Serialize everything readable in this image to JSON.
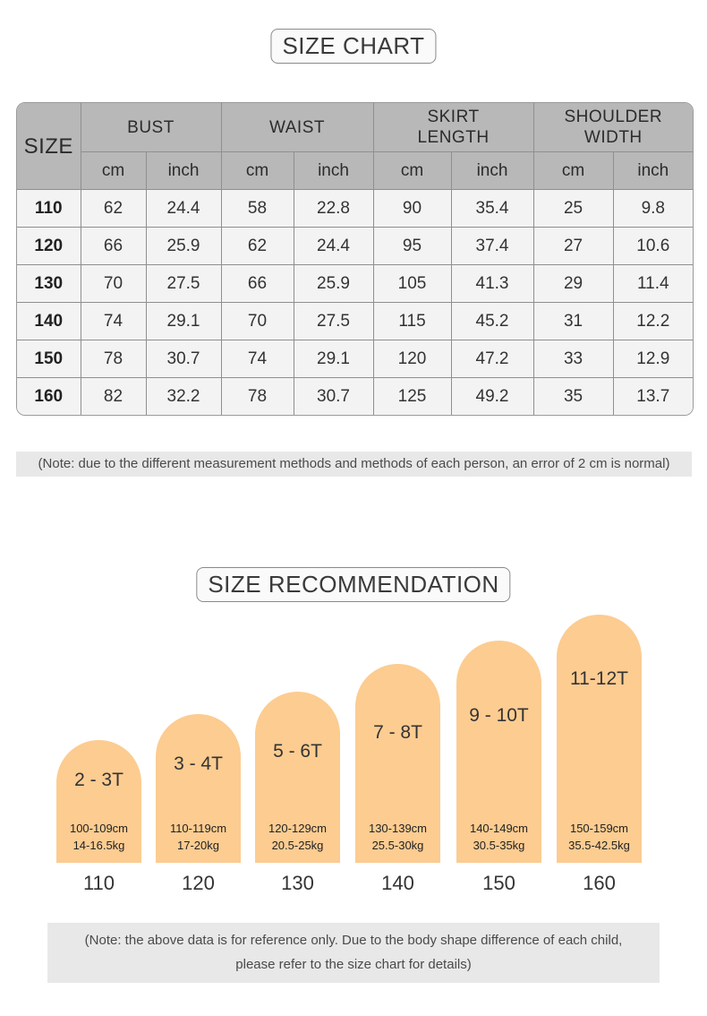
{
  "size_chart": {
    "title": "SIZE CHART",
    "size_header": "SIZE",
    "groups": [
      "BUST",
      "WAIST",
      "SKIRT LENGTH",
      "SHOULDER WIDTH"
    ],
    "group_lines": [
      [
        "BUST"
      ],
      [
        "WAIST"
      ],
      [
        "SKIRT",
        "LENGTH"
      ],
      [
        "SHOULDER",
        "WIDTH"
      ]
    ],
    "unit_cm": "cm",
    "unit_inch": "inch",
    "rows": [
      {
        "size": "110",
        "values": [
          "62",
          "24.4",
          "58",
          "22.8",
          "90",
          "35.4",
          "25",
          "9.8"
        ]
      },
      {
        "size": "120",
        "values": [
          "66",
          "25.9",
          "62",
          "24.4",
          "95",
          "37.4",
          "27",
          "10.6"
        ]
      },
      {
        "size": "130",
        "values": [
          "70",
          "27.5",
          "66",
          "25.9",
          "105",
          "41.3",
          "29",
          "11.4"
        ]
      },
      {
        "size": "140",
        "values": [
          "74",
          "29.1",
          "70",
          "27.5",
          "115",
          "45.2",
          "31",
          "12.2"
        ]
      },
      {
        "size": "150",
        "values": [
          "78",
          "30.7",
          "74",
          "29.1",
          "120",
          "47.2",
          "33",
          "12.9"
        ]
      },
      {
        "size": "160",
        "values": [
          "82",
          "32.2",
          "78",
          "30.7",
          "125",
          "49.2",
          "35",
          "13.7"
        ]
      }
    ],
    "note": "(Note: due to the different measurement methods and methods of each person, an error of 2 cm is normal)"
  },
  "recommendation": {
    "title": "SIZE RECOMMENDATION",
    "arch_color": "#fccc91",
    "items": [
      {
        "age": "2 - 3T",
        "height": "100-109cm",
        "weight": "14-16.5kg",
        "size": "110"
      },
      {
        "age": "3 - 4T",
        "height": "110-119cm",
        "weight": "17-20kg",
        "size": "120"
      },
      {
        "age": "5 - 6T",
        "height": "120-129cm",
        "weight": "20.5-25kg",
        "size": "130"
      },
      {
        "age": "7 - 8T",
        "height": "130-139cm",
        "weight": "25.5-30kg",
        "size": "140"
      },
      {
        "age": "9 - 10T",
        "height": "140-149cm",
        "weight": "30.5-35kg",
        "size": "150"
      },
      {
        "age": "11-12T",
        "height": "150-159cm",
        "weight": "35.5-42.5kg",
        "size": "160"
      }
    ],
    "note_lines": [
      "(Note: the above data is for reference only. Due to the body shape difference of each child,",
      "please refer to the size chart for details)"
    ]
  }
}
